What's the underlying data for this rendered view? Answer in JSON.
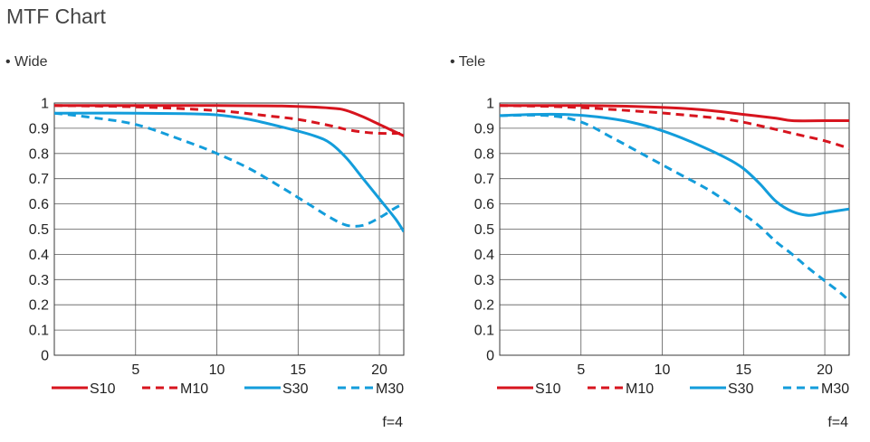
{
  "page": {
    "title": "MTF Chart"
  },
  "chart_data": [
    {
      "type": "line",
      "section_label": "• Wide",
      "xlim": [
        0,
        21.5
      ],
      "ylim": [
        0,
        1
      ],
      "x_ticks": [
        5,
        10,
        15,
        20
      ],
      "x_tick_labels": [
        "5",
        "10",
        "15",
        "20"
      ],
      "y_ticks": [
        0,
        0.1,
        0.2,
        0.3,
        0.4,
        0.5,
        0.6,
        0.7,
        0.8,
        0.9,
        1
      ],
      "y_tick_labels": [
        "0",
        "0.1",
        "0.2",
        "0.3",
        "0.4",
        "0.5",
        "0.6",
        "0.7",
        "0.8",
        "0.9",
        "1"
      ],
      "grid": true,
      "legend_position": "bottom",
      "note": "f=4",
      "series": [
        {
          "name": "S10",
          "color": "#d7141e",
          "style": "solid",
          "points": [
            [
              0,
              0.99
            ],
            [
              5,
              0.99
            ],
            [
              10,
              0.99
            ],
            [
              14,
              0.988
            ],
            [
              17,
              0.98
            ],
            [
              18,
              0.97
            ],
            [
              19,
              0.945
            ],
            [
              20,
              0.915
            ],
            [
              21,
              0.885
            ],
            [
              21.5,
              0.87
            ]
          ]
        },
        {
          "name": "M10",
          "color": "#d7141e",
          "style": "dashed",
          "points": [
            [
              0,
              0.99
            ],
            [
              5,
              0.985
            ],
            [
              10,
              0.97
            ],
            [
              13,
              0.95
            ],
            [
              15,
              0.935
            ],
            [
              17,
              0.91
            ],
            [
              18,
              0.895
            ],
            [
              19,
              0.885
            ],
            [
              20,
              0.88
            ],
            [
              21.5,
              0.88
            ]
          ]
        },
        {
          "name": "S30",
          "color": "#139ddb",
          "style": "solid",
          "points": [
            [
              0,
              0.96
            ],
            [
              5,
              0.96
            ],
            [
              8,
              0.958
            ],
            [
              10,
              0.953
            ],
            [
              12,
              0.935
            ],
            [
              14,
              0.905
            ],
            [
              16,
              0.87
            ],
            [
              17,
              0.84
            ],
            [
              18,
              0.78
            ],
            [
              19,
              0.7
            ],
            [
              20,
              0.62
            ],
            [
              21,
              0.54
            ],
            [
              21.5,
              0.49
            ]
          ]
        },
        {
          "name": "M30",
          "color": "#139ddb",
          "style": "dashed",
          "points": [
            [
              0,
              0.96
            ],
            [
              2,
              0.945
            ],
            [
              5,
              0.915
            ],
            [
              8,
              0.85
            ],
            [
              10,
              0.8
            ],
            [
              12,
              0.74
            ],
            [
              14,
              0.665
            ],
            [
              15,
              0.625
            ],
            [
              16,
              0.585
            ],
            [
              17,
              0.545
            ],
            [
              18,
              0.515
            ],
            [
              19,
              0.515
            ],
            [
              20,
              0.545
            ],
            [
              21,
              0.585
            ],
            [
              21.5,
              0.6
            ]
          ]
        }
      ]
    },
    {
      "type": "line",
      "section_label": "• Tele",
      "xlim": [
        0,
        21.5
      ],
      "ylim": [
        0,
        1
      ],
      "x_ticks": [
        5,
        10,
        15,
        20
      ],
      "x_tick_labels": [
        "5",
        "10",
        "15",
        "20"
      ],
      "y_ticks": [
        0,
        0.1,
        0.2,
        0.3,
        0.4,
        0.5,
        0.6,
        0.7,
        0.8,
        0.9,
        1
      ],
      "y_tick_labels": [
        "0",
        "0.1",
        "0.2",
        "0.3",
        "0.4",
        "0.5",
        "0.6",
        "0.7",
        "0.8",
        "0.9",
        "1"
      ],
      "grid": true,
      "legend_position": "bottom",
      "note": "f=4",
      "series": [
        {
          "name": "S10",
          "color": "#d7141e",
          "style": "solid",
          "points": [
            [
              0,
              0.99
            ],
            [
              5,
              0.99
            ],
            [
              8,
              0.987
            ],
            [
              11,
              0.98
            ],
            [
              13,
              0.97
            ],
            [
              15,
              0.955
            ],
            [
              17,
              0.94
            ],
            [
              18,
              0.93
            ],
            [
              20,
              0.93
            ],
            [
              21.5,
              0.93
            ]
          ]
        },
        {
          "name": "M10",
          "color": "#d7141e",
          "style": "dashed",
          "points": [
            [
              0,
              0.99
            ],
            [
              4,
              0.985
            ],
            [
              8,
              0.97
            ],
            [
              11,
              0.955
            ],
            [
              14,
              0.935
            ],
            [
              16,
              0.91
            ],
            [
              18,
              0.88
            ],
            [
              20,
              0.85
            ],
            [
              21.5,
              0.82
            ]
          ]
        },
        {
          "name": "S30",
          "color": "#139ddb",
          "style": "solid",
          "points": [
            [
              0,
              0.95
            ],
            [
              2,
              0.955
            ],
            [
              4,
              0.955
            ],
            [
              6,
              0.945
            ],
            [
              8,
              0.925
            ],
            [
              10,
              0.89
            ],
            [
              12,
              0.84
            ],
            [
              14,
              0.78
            ],
            [
              15,
              0.74
            ],
            [
              16,
              0.68
            ],
            [
              17,
              0.61
            ],
            [
              18,
              0.57
            ],
            [
              19,
              0.555
            ],
            [
              20,
              0.565
            ],
            [
              21.5,
              0.58
            ]
          ]
        },
        {
          "name": "M30",
          "color": "#139ddb",
          "style": "dashed",
          "points": [
            [
              0,
              0.95
            ],
            [
              3,
              0.95
            ],
            [
              5,
              0.925
            ],
            [
              7,
              0.86
            ],
            [
              9,
              0.79
            ],
            [
              11,
              0.72
            ],
            [
              13,
              0.65
            ],
            [
              15,
              0.56
            ],
            [
              16,
              0.51
            ],
            [
              17,
              0.45
            ],
            [
              18,
              0.4
            ],
            [
              19,
              0.345
            ],
            [
              20,
              0.295
            ],
            [
              21,
              0.245
            ],
            [
              21.5,
              0.215
            ]
          ]
        }
      ]
    }
  ]
}
